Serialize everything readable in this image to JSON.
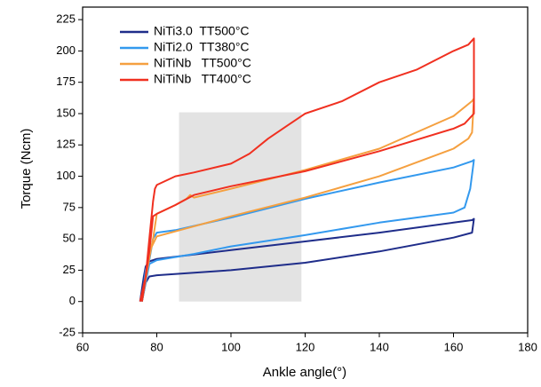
{
  "chart_data": {
    "type": "line",
    "x_label": "Ankle angle(°)",
    "y_label": "Torque (Ncm)",
    "xlim": [
      60,
      180
    ],
    "xticks": [
      60,
      80,
      100,
      120,
      140,
      160,
      180
    ],
    "ylim": [
      -25,
      235
    ],
    "yticks": [
      -25,
      0,
      25,
      50,
      75,
      100,
      125,
      150,
      175,
      200,
      225
    ],
    "legend": "upper left",
    "highlight": {
      "x": [
        86,
        119
      ],
      "y": [
        0,
        151
      ],
      "color": "#e3e3e3"
    },
    "series": [
      {
        "name": "NiTi3.0  TT500°C",
        "color": "#1f2d8a",
        "x": [
          75.5,
          76.5,
          77,
          78,
          80,
          100,
          120,
          140,
          160,
          165,
          165.5,
          165,
          160,
          140,
          120,
          100,
          80,
          78,
          77,
          76
        ],
        "values": [
          0,
          20,
          28,
          32,
          34,
          41,
          48,
          55,
          63,
          65,
          66,
          55,
          51,
          40,
          31,
          25,
          21,
          20,
          15,
          0
        ]
      },
      {
        "name": "NiTi2.0  TT380°C",
        "color": "#3399ee",
        "x": [
          76,
          77,
          78,
          79,
          80,
          85,
          100,
          120,
          140,
          160,
          165,
          165.5,
          164.5,
          163,
          160,
          140,
          120,
          100,
          90,
          80,
          78,
          76
        ],
        "values": [
          0,
          25,
          33,
          50,
          55,
          57,
          67,
          82,
          95,
          107,
          112,
          113,
          90,
          75,
          71,
          63,
          53,
          44,
          38,
          33,
          30,
          0
        ]
      },
      {
        "name": "NiTiNb   TT500°C",
        "color": "#f5a040",
        "x": [
          76,
          78,
          79,
          80,
          85,
          88,
          89,
          90,
          100,
          120,
          140,
          160,
          165,
          165.5,
          165,
          164,
          160,
          140,
          120,
          100,
          80,
          78,
          76
        ],
        "values": [
          0,
          35,
          50,
          70,
          77,
          82,
          85,
          83,
          90,
          105,
          122,
          148,
          160,
          162,
          135,
          130,
          122,
          100,
          83,
          68,
          52,
          40,
          0
        ]
      },
      {
        "name": "NiTiNb   TT400°C",
        "color": "#f03020",
        "x": [
          75.5,
          77,
          78,
          79,
          79.5,
          80,
          85,
          90,
          100,
          105,
          110,
          115,
          119,
          120,
          130,
          140,
          150,
          160,
          164,
          165.5,
          165.5,
          163,
          160,
          140,
          120,
          100,
          90,
          85,
          80,
          79,
          78,
          77,
          76
        ],
        "values": [
          0,
          20,
          50,
          80,
          90,
          93,
          100,
          103,
          110,
          118,
          130,
          140,
          148,
          150,
          160,
          175,
          185,
          200,
          205,
          210,
          150,
          142,
          138,
          120,
          104,
          92,
          85,
          77,
          70,
          68,
          40,
          20,
          0
        ]
      }
    ]
  }
}
